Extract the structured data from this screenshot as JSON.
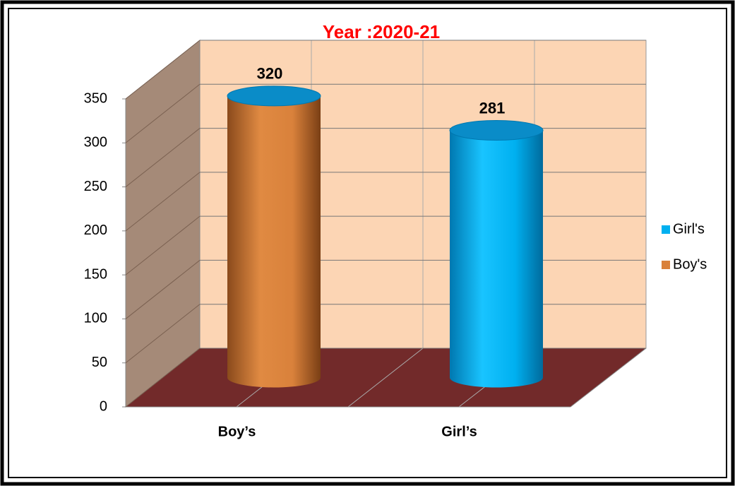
{
  "chart_data": {
    "type": "bar3d",
    "title": "Year :2020-21",
    "categories": [
      "Boy’s",
      "Girl’s"
    ],
    "series": [
      {
        "name": "Girl's",
        "color": "#00b0f0",
        "values": [
          null,
          281
        ]
      },
      {
        "name": "Boy's",
        "color": "#d9813b",
        "values": [
          320,
          null
        ]
      }
    ],
    "ylim": [
      0,
      350
    ],
    "yticks": [
      0,
      50,
      100,
      150,
      200,
      250,
      300,
      350
    ],
    "grid": true,
    "legend": "right"
  }
}
